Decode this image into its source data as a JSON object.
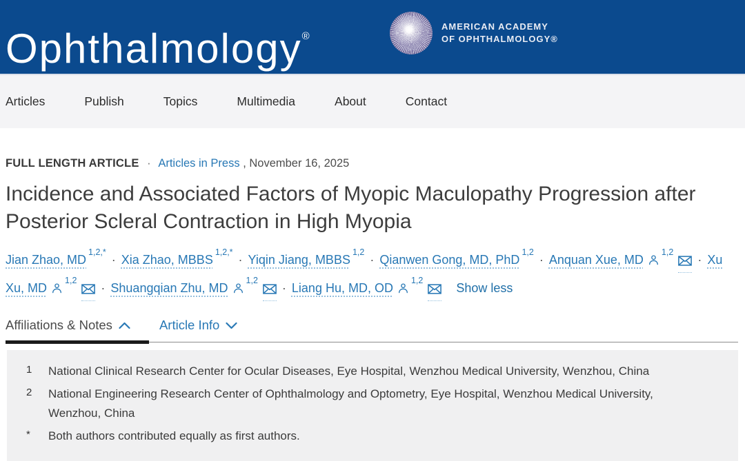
{
  "header": {
    "journal_logo": "Ophthalmology",
    "registered_mark": "®",
    "society_line1": "AMERICAN ACADEMY",
    "society_line2": "OF OPHTHALMOLOGY®"
  },
  "nav": {
    "items": [
      "Articles",
      "Publish",
      "Topics",
      "Multimedia",
      "About",
      "Contact"
    ]
  },
  "article": {
    "eyebrow": "FULL LENGTH ARTICLE",
    "separator": "·",
    "press_link": "Articles in Press",
    "date": ", November 16, 2025",
    "title": "Incidence and Associated Factors of Myopic Maculopathy Progression after Posterior Scleral Contraction in High Myopia",
    "authors": [
      {
        "name": "Jian Zhao, MD",
        "sup": "1,2,*",
        "person_icon": false,
        "email_icon": false
      },
      {
        "name": "Xia Zhao, MBBS",
        "sup": "1,2,*",
        "person_icon": false,
        "email_icon": false
      },
      {
        "name": "Yiqin Jiang, MBBS",
        "sup": "1,2",
        "person_icon": false,
        "email_icon": false
      },
      {
        "name": "Qianwen Gong, MD, PhD",
        "sup": "1,2",
        "person_icon": false,
        "email_icon": false
      },
      {
        "name": "Anquan Xue, MD",
        "sup": "1,2",
        "person_icon": true,
        "email_icon": true
      },
      {
        "name": "Xu Xu, MD",
        "sup": "1,2",
        "person_icon": true,
        "email_icon": true
      },
      {
        "name": "Shuangqian Zhu, MD",
        "sup": "1,2",
        "person_icon": true,
        "email_icon": true
      },
      {
        "name": "Liang Hu, MD, OD",
        "sup": "1,2",
        "person_icon": true,
        "email_icon": true
      }
    ],
    "show_less_label": "Show less"
  },
  "tabs": {
    "affiliations_label": "Affiliations & Notes",
    "article_info_label": "Article Info"
  },
  "affiliations": [
    {
      "marker": "1",
      "text": "National Clinical Research Center for Ocular Diseases, Eye Hospital, Wenzhou Medical University, Wenzhou, China"
    },
    {
      "marker": "2",
      "text": "National Engineering Research Center of Ophthalmology and Optometry, Eye Hospital, Wenzhou Medical University, Wenzhou, China"
    },
    {
      "marker": "*",
      "text": "Both authors contributed equally as first authors."
    }
  ],
  "colors": {
    "header_blue": "#0b4a8e",
    "link_blue": "#2878b5",
    "active_tab_underline": "#1b1b1b",
    "affiliations_bg": "#f0f0f1"
  }
}
